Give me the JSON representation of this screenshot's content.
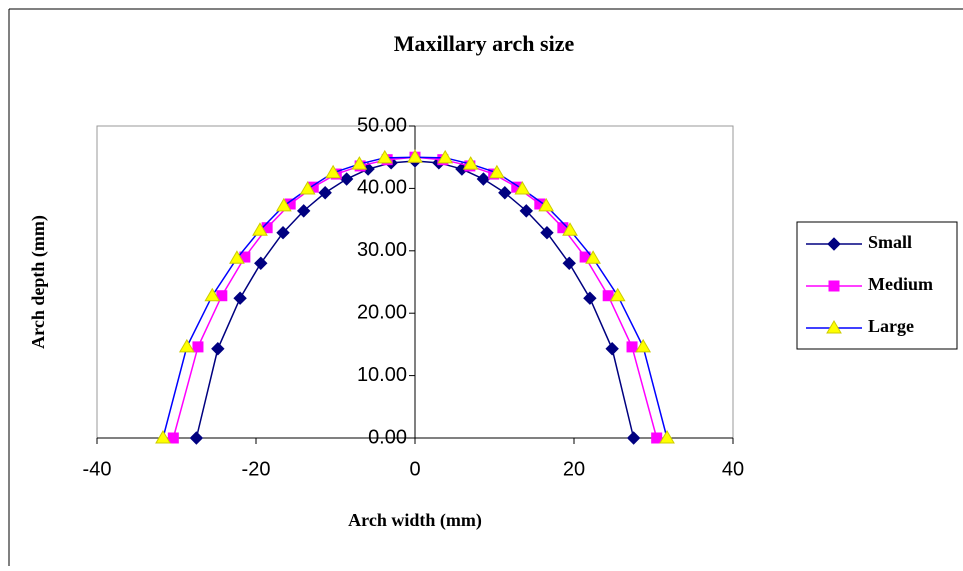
{
  "chart_data": {
    "type": "line",
    "title": "Maxillary arch size",
    "x_label": "Arch width (mm)",
    "y_label": "Arch depth (mm)",
    "xlim": [
      -40,
      40
    ],
    "xticks": [
      -40,
      -20,
      0,
      20,
      40
    ],
    "ylim": [
      0,
      50
    ],
    "yticks": [
      {
        "value": 0,
        "label": "0.00"
      },
      {
        "value": 10,
        "label": "10.00"
      },
      {
        "value": 20,
        "label": "20.00"
      },
      {
        "value": 30,
        "label": "30.00"
      },
      {
        "value": 40,
        "label": "40.00"
      },
      {
        "value": 50,
        "label": "50.00"
      }
    ],
    "legend": "right",
    "series": [
      {
        "name": "Small",
        "color": "#000080",
        "marker": "diamond",
        "marker_color": "#000080",
        "x": [
          -27.5,
          -24.8,
          -22.0,
          -19.4,
          -16.6,
          -14.0,
          -11.3,
          -8.6,
          -5.9,
          -3.0,
          0,
          3.0,
          5.9,
          8.6,
          11.3,
          14.0,
          16.6,
          19.4,
          22.0,
          24.8,
          27.5
        ],
        "values": [
          0,
          14.3,
          22.4,
          28.0,
          32.9,
          36.4,
          39.3,
          41.5,
          43.1,
          44.1,
          44.4,
          44.1,
          43.1,
          41.5,
          39.3,
          36.4,
          32.9,
          28.0,
          22.4,
          14.3,
          0
        ]
      },
      {
        "name": "Medium",
        "color": "#ff00ff",
        "marker": "square",
        "marker_color": "#ff00ff",
        "x": [
          -30.4,
          -27.3,
          -24.3,
          -21.4,
          -18.6,
          -15.7,
          -12.8,
          -9.9,
          -6.9,
          -3.5,
          0,
          3.5,
          6.9,
          9.9,
          12.8,
          15.7,
          18.6,
          21.4,
          24.3,
          27.3,
          30.4
        ],
        "values": [
          0,
          14.6,
          22.8,
          29.0,
          33.7,
          37.5,
          40.2,
          42.3,
          43.6,
          44.6,
          45.0,
          44.6,
          43.6,
          42.3,
          40.2,
          37.5,
          33.7,
          29.0,
          22.8,
          14.6,
          0
        ]
      },
      {
        "name": "Large",
        "color": "#0000ff",
        "marker": "triangle",
        "marker_color": "#ffff00",
        "x": [
          -31.7,
          -28.7,
          -25.5,
          -22.4,
          -19.5,
          -16.5,
          -13.5,
          -10.3,
          -7.0,
          -3.8,
          0,
          3.8,
          7.0,
          10.3,
          13.5,
          16.5,
          19.5,
          22.4,
          25.5,
          28.7,
          31.7
        ],
        "values": [
          0,
          14.6,
          22.8,
          28.8,
          33.3,
          37.2,
          39.9,
          42.5,
          43.9,
          44.9,
          45.0,
          44.9,
          43.9,
          42.5,
          39.9,
          37.2,
          33.3,
          28.8,
          22.8,
          14.6,
          0
        ]
      }
    ]
  }
}
